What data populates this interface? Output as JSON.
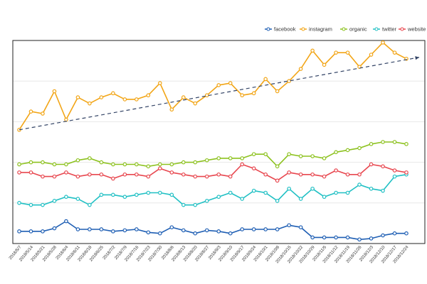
{
  "chart_data": {
    "type": "line",
    "title": "",
    "xlabel": "",
    "ylabel": "",
    "grid": "horizontal",
    "legend_position": "top-right",
    "x_tick_labels_rotated": true,
    "ylim": [
      0,
      100
    ],
    "x": [
      "2018/5/7",
      "2018/5/14",
      "2018/5/21",
      "2018/5/28",
      "2018/6/4",
      "2018/6/11",
      "2018/6/18",
      "2018/6/25",
      "2018/7/2",
      "2018/7/9",
      "2018/7/16",
      "2018/7/23",
      "2018/7/30",
      "2018/8/6",
      "2018/8/13",
      "2018/8/20",
      "2018/8/27",
      "2018/9/3",
      "2018/9/10",
      "2018/9/17",
      "2018/9/24",
      "2018/10/1",
      "2018/10/8",
      "2018/10/15",
      "2018/10/22",
      "2018/10/29",
      "2018/11/5",
      "2018/11/12",
      "2018/11/19",
      "2018/11/26",
      "2018/12/3",
      "2018/12/10",
      "2018/12/17",
      "2018/12/24"
    ],
    "series": [
      {
        "name": "facebook",
        "color": "#1f5fb4",
        "values": [
          6,
          6,
          6,
          7.5,
          11,
          7,
          7,
          7,
          6,
          6.5,
          7,
          5.5,
          5,
          8,
          6.5,
          5,
          6.5,
          6,
          5,
          7,
          7,
          7,
          7,
          9,
          8,
          3,
          3,
          3,
          3,
          2,
          2.5,
          4,
          5,
          5
        ]
      },
      {
        "name": "instagram",
        "color": "#f2a516",
        "values": [
          56,
          65,
          64,
          75,
          61,
          72,
          69,
          72,
          74,
          71,
          71,
          73,
          79,
          66,
          72,
          69,
          73,
          78,
          79,
          73,
          74,
          81,
          75,
          80,
          86,
          95,
          88,
          94,
          94,
          87,
          93,
          99,
          94,
          91
        ]
      },
      {
        "name": "organic",
        "color": "#8dc21f",
        "values": [
          39,
          40,
          40,
          39,
          39,
          41,
          42,
          40,
          39,
          39,
          39,
          38,
          39,
          39,
          40,
          40,
          41,
          42,
          42,
          42,
          44,
          44,
          38,
          44,
          43,
          43,
          42,
          45,
          46,
          47,
          49,
          50,
          50,
          49
        ]
      },
      {
        "name": "twitter",
        "color": "#20c0c4",
        "values": [
          20,
          19,
          19,
          21,
          23,
          22,
          19,
          24,
          24,
          23,
          24,
          25,
          25,
          24,
          19,
          19,
          21,
          23,
          25,
          22,
          26,
          25,
          21,
          27,
          22,
          27,
          23,
          25,
          25,
          29,
          27,
          26,
          33,
          34
        ]
      },
      {
        "name": "website",
        "color": "#e8474f",
        "values": [
          35,
          35,
          33,
          33,
          35,
          33,
          34,
          34,
          32,
          34,
          34,
          33,
          37,
          35,
          34,
          33,
          33,
          34,
          33,
          39,
          37,
          34,
          31,
          35,
          34,
          34,
          33,
          36,
          34,
          34,
          39,
          38,
          36,
          35
        ]
      }
    ],
    "trendline": {
      "series": "instagram",
      "style": "dashed",
      "color": "#334466",
      "start": 56,
      "end": 91
    }
  }
}
